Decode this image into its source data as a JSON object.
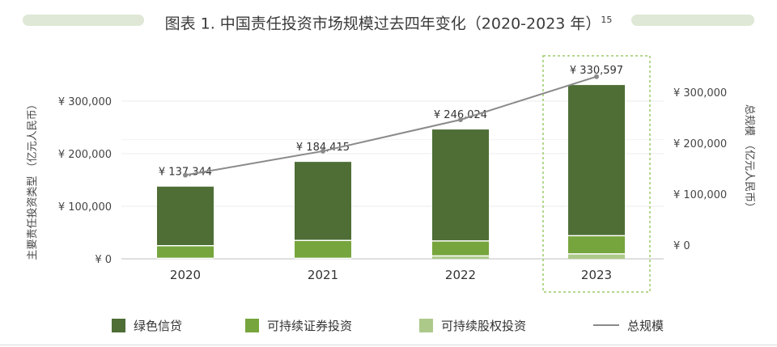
{
  "figure": {
    "title": "图表 1. 中国责任投资市场规模过去四年变化（2020-2023 年）",
    "title_sup": "15"
  },
  "chart_data": {
    "type": "bar",
    "stacked": true,
    "categories": [
      "2020",
      "2021",
      "2022",
      "2023"
    ],
    "series": [
      {
        "name": "可持续股权投资",
        "values": [
          1000,
          1000,
          5500,
          9500
        ],
        "color": "#adc98a"
      },
      {
        "name": "可持续证券投资",
        "values": [
          24000,
          34000,
          28500,
          34500
        ],
        "color": "#76a53d"
      },
      {
        "name": "绿色信贷",
        "values": [
          112344,
          149415,
          212024,
          286597
        ],
        "color": "#4e6e36"
      }
    ],
    "line": {
      "name": "总规模",
      "values": [
        137344,
        184415,
        246024,
        330597
      ],
      "color": "#8a8a8a"
    },
    "total_labels": [
      "¥ 137,344",
      "¥ 184,415",
      "¥ 246,024",
      "¥ 330,597"
    ],
    "highlight_category": "2023",
    "y_left": {
      "label": "主要责任投资类型 （亿元人民币）",
      "ticks": [
        0,
        100000,
        200000,
        300000
      ],
      "tick_labels": [
        "¥ 0",
        "¥ 100,000",
        "¥ 200,000",
        "¥ 300,000"
      ],
      "lim": [
        0,
        360000
      ]
    },
    "y_right": {
      "label": "总规模 （亿元人民币）",
      "ticks": [
        0,
        100000,
        200000,
        300000
      ],
      "tick_labels": [
        "¥ 0",
        "¥ 100,000",
        "¥ 200,000",
        "¥ 300,000"
      ],
      "lim": [
        -60000,
        400000
      ]
    },
    "legend": [
      {
        "name": "绿色信贷",
        "color": "#4e6e36",
        "kind": "box"
      },
      {
        "name": "可持续证券投资",
        "color": "#76a53d",
        "kind": "box"
      },
      {
        "name": "可持续股权投资",
        "color": "#adc98a",
        "kind": "box"
      },
      {
        "name": "总规模",
        "color": "#8a8a8a",
        "kind": "line"
      }
    ],
    "legend_position": "bottom",
    "grid": true
  }
}
